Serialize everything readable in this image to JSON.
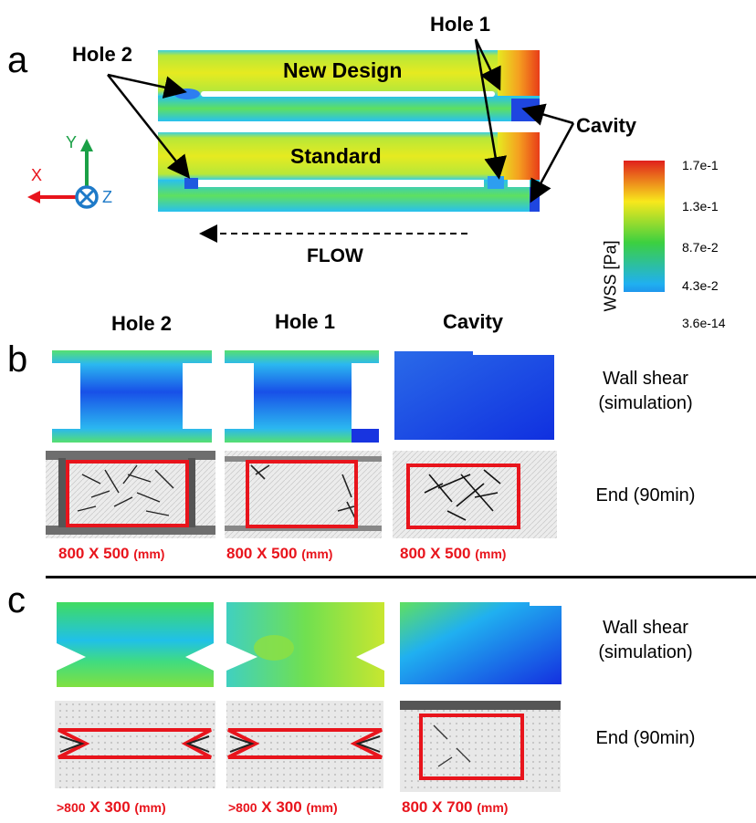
{
  "panels": {
    "a": "a",
    "b": "b",
    "c": "c"
  },
  "panel_a": {
    "designs": [
      "New Design",
      "Standard"
    ],
    "callouts": {
      "hole2": "Hole 2",
      "hole1": "Hole 1",
      "cavity": "Cavity"
    },
    "flow_label": "FLOW",
    "axes": {
      "x": "X",
      "y": "Y",
      "z": "Z"
    }
  },
  "colorbar": {
    "title": "WSS [Pa]",
    "ticks": [
      "1.7e-1",
      "1.3e-1",
      "8.7e-2",
      "4.3e-2",
      "3.6e-14"
    ],
    "colors": [
      "#e0201c",
      "#f8e81c",
      "#3cd040",
      "#20b0f0",
      "#1830e0"
    ]
  },
  "columns": [
    "Hole 2",
    "Hole 1",
    "Cavity"
  ],
  "panel_b": {
    "row_labels": {
      "sim_line1": "Wall shear",
      "sim_line2": "(simulation)",
      "end": "End (90min)"
    },
    "dims": [
      {
        "main": "800 X 500 ",
        "unit": "(mm)"
      },
      {
        "main": "800 X 500 ",
        "unit": "(mm)"
      },
      {
        "main": "800 X 500 ",
        "unit": "(mm)"
      }
    ]
  },
  "panel_c": {
    "row_labels": {
      "sim_line1": "Wall shear",
      "sim_line2": "(simulation)",
      "end": "End (90min)"
    },
    "dims": [
      {
        "prefix": ">800",
        "main": " X 300 ",
        "unit": "(mm)"
      },
      {
        "prefix": ">800",
        "main": " X 300 ",
        "unit": "(mm)"
      },
      {
        "prefix": "",
        "main": "800 X 700 ",
        "unit": "(mm)"
      }
    ]
  }
}
